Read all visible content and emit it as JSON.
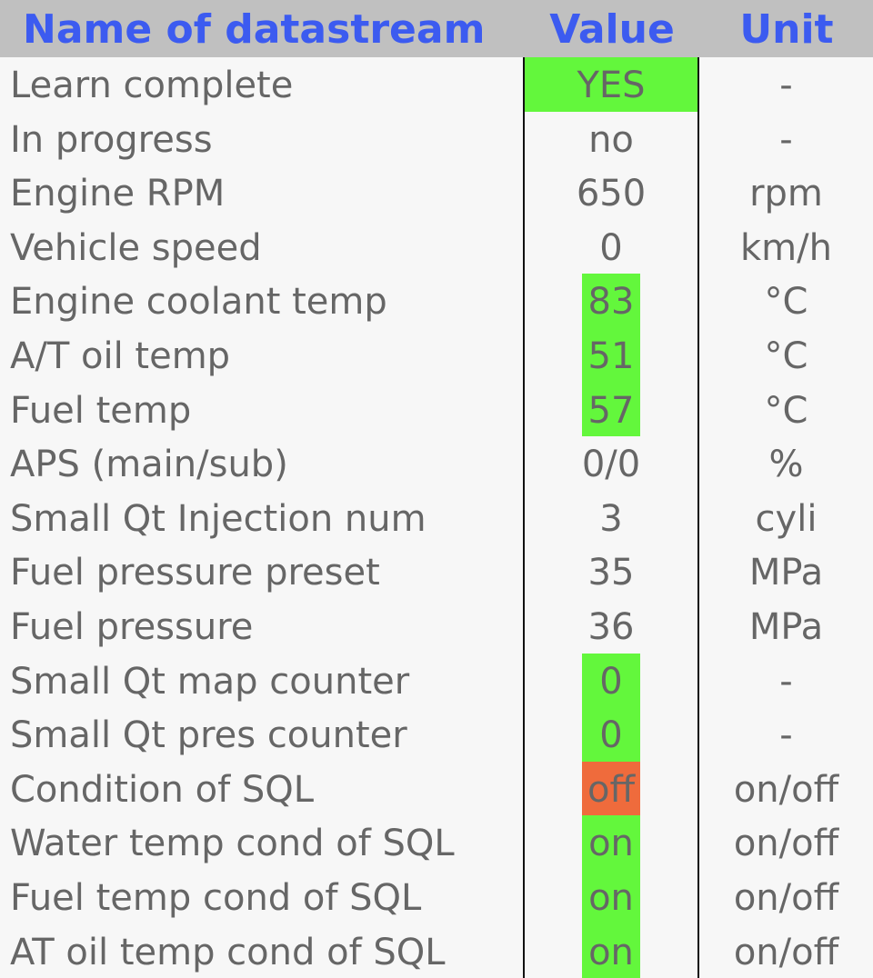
{
  "header": {
    "name": "Name of datastream",
    "value": "Value",
    "unit": "Unit"
  },
  "colors": {
    "header_bg": "#c0c0c0",
    "header_text": "#3c5bf0",
    "ok_highlight": "#63f73c",
    "off_highlight": "#ef6b3c",
    "body_text": "#666666"
  },
  "rows": [
    {
      "name": "Learn complete",
      "value": "YES",
      "unit": "-",
      "status": "ok"
    },
    {
      "name": "In progress",
      "value": "no",
      "unit": "-",
      "status": "none"
    },
    {
      "name": "Engine RPM",
      "value": "650",
      "unit": "rpm",
      "status": "none"
    },
    {
      "name": "Vehicle speed",
      "value": "0",
      "unit": "km/h",
      "status": "none"
    },
    {
      "name": "Engine coolant temp",
      "value": "83",
      "unit": "°C",
      "status": "ok"
    },
    {
      "name": "A/T oil temp",
      "value": "51",
      "unit": "°C",
      "status": "ok"
    },
    {
      "name": "Fuel temp",
      "value": "57",
      "unit": "°C",
      "status": "ok"
    },
    {
      "name": "APS (main/sub)",
      "value": "0/0",
      "unit": "%",
      "status": "none"
    },
    {
      "name": "Small Qt Injection num",
      "value": "3",
      "unit": "cyli",
      "status": "none"
    },
    {
      "name": "Fuel pressure preset",
      "value": "35",
      "unit": "MPa",
      "status": "none"
    },
    {
      "name": "Fuel pressure",
      "value": "36",
      "unit": "MPa",
      "status": "none"
    },
    {
      "name": "Small Qt map counter",
      "value": "0",
      "unit": "-",
      "status": "ok"
    },
    {
      "name": "Small Qt pres counter",
      "value": "0",
      "unit": "-",
      "status": "ok"
    },
    {
      "name": "Condition of SQL",
      "value": "off",
      "unit": "on/off",
      "status": "off"
    },
    {
      "name": "Water temp cond of SQL",
      "value": "on",
      "unit": "on/off",
      "status": "ok"
    },
    {
      "name": "Fuel temp cond of SQL",
      "value": "on",
      "unit": "on/off",
      "status": "ok"
    },
    {
      "name": "AT oil temp cond of SQL",
      "value": "on",
      "unit": "on/off",
      "status": "ok"
    }
  ]
}
